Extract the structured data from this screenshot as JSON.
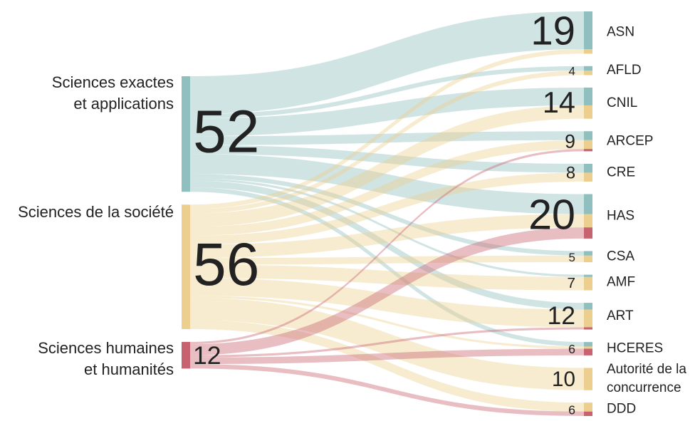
{
  "chart_data": {
    "type": "sankey",
    "sources": [
      {
        "label": [
          "Sciences exactes",
          "et applications"
        ],
        "value": 52,
        "color": "#8fbfbf"
      },
      {
        "label": [
          "Sciences de la société"
        ],
        "value": 56,
        "color": "#eccf8e"
      },
      {
        "label": [
          "Sciences humaines",
          "et humanités"
        ],
        "value": 12,
        "color": "#c76370"
      }
    ],
    "targets": [
      {
        "label": [
          "ASN"
        ],
        "value": 19
      },
      {
        "label": [
          "AFLD"
        ],
        "value": 4
      },
      {
        "label": [
          "CNIL"
        ],
        "value": 14
      },
      {
        "label": [
          "ARCEP"
        ],
        "value": 9
      },
      {
        "label": [
          "CRE"
        ],
        "value": 8
      },
      {
        "label": [
          "HAS"
        ],
        "value": 20
      },
      {
        "label": [
          "CSA"
        ],
        "value": 5
      },
      {
        "label": [
          "AMF"
        ],
        "value": 7
      },
      {
        "label": [
          "ART"
        ],
        "value": 12
      },
      {
        "label": [
          "HCERES"
        ],
        "value": 6
      },
      {
        "label": [
          "Autorité de la",
          "concurrence"
        ],
        "value": 10
      },
      {
        "label": [
          "DDD"
        ],
        "value": 6
      }
    ],
    "flows": [
      {
        "source": 0,
        "target": 0,
        "value": 17
      },
      {
        "source": 0,
        "target": 1,
        "value": 2
      },
      {
        "source": 0,
        "target": 2,
        "value": 8
      },
      {
        "source": 0,
        "target": 3,
        "value": 4
      },
      {
        "source": 0,
        "target": 4,
        "value": 4
      },
      {
        "source": 0,
        "target": 5,
        "value": 9
      },
      {
        "source": 0,
        "target": 6,
        "value": 2
      },
      {
        "source": 0,
        "target": 7,
        "value": 1
      },
      {
        "source": 0,
        "target": 8,
        "value": 3
      },
      {
        "source": 0,
        "target": 9,
        "value": 2
      },
      {
        "source": 1,
        "target": 0,
        "value": 2
      },
      {
        "source": 1,
        "target": 1,
        "value": 2
      },
      {
        "source": 1,
        "target": 2,
        "value": 6
      },
      {
        "source": 1,
        "target": 3,
        "value": 4
      },
      {
        "source": 1,
        "target": 4,
        "value": 4
      },
      {
        "source": 1,
        "target": 5,
        "value": 6
      },
      {
        "source": 1,
        "target": 6,
        "value": 3
      },
      {
        "source": 1,
        "target": 7,
        "value": 6
      },
      {
        "source": 1,
        "target": 8,
        "value": 8
      },
      {
        "source": 1,
        "target": 9,
        "value": 1
      },
      {
        "source": 1,
        "target": 10,
        "value": 10
      },
      {
        "source": 1,
        "target": 11,
        "value": 4
      },
      {
        "source": 2,
        "target": 3,
        "value": 1
      },
      {
        "source": 2,
        "target": 5,
        "value": 5
      },
      {
        "source": 2,
        "target": 8,
        "value": 1
      },
      {
        "source": 2,
        "target": 9,
        "value": 3
      },
      {
        "source": 2,
        "target": 11,
        "value": 2
      }
    ]
  }
}
